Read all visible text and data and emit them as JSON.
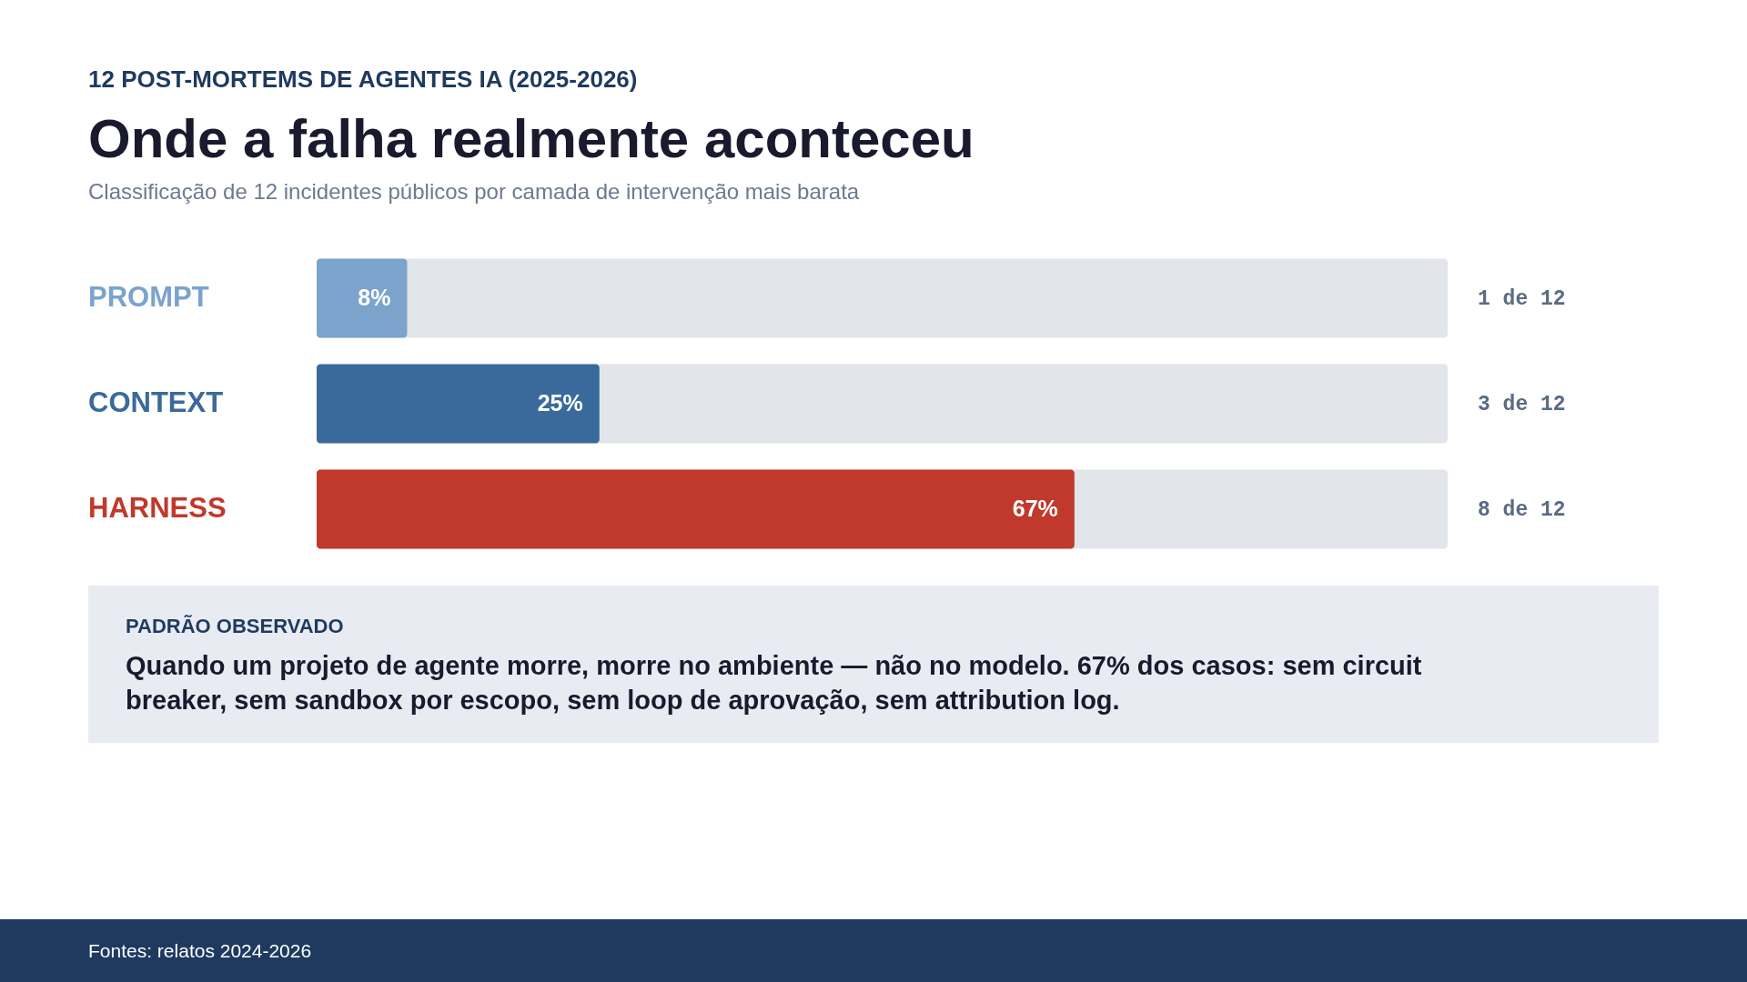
{
  "chart_data": {
    "type": "bar",
    "orientation": "horizontal",
    "title": "Onde a falha realmente aconteceu",
    "subtitle": "Classificação de 12 incidentes públicos por camada de intervenção mais barata",
    "categories": [
      "PROMPT",
      "CONTEXT",
      "HARNESS"
    ],
    "values": [
      8,
      25,
      67
    ],
    "colors": [
      "#7ba3cc",
      "#3a6a9b",
      "#c0392b"
    ],
    "value_labels": [
      "8%",
      "25%",
      "67%"
    ],
    "xlim": [
      0,
      100
    ],
    "tick_labels": false,
    "annotations": [
      "12 POST-MORTEMS DE AGENTES IA (2025-2026)",
      "PADRÃO OBSERVADO",
      "Quando um projeto de agente morre, morre no ambiente — não no modelo. 67% dos casos: sem circuit breaker, sem sandbox por escopo, sem loop de aprovação, sem attribution log.",
      "Fontes: relatos 2024-2026",
      "1 de 12",
      "3 de 12",
      "8 de 12"
    ]
  }
}
